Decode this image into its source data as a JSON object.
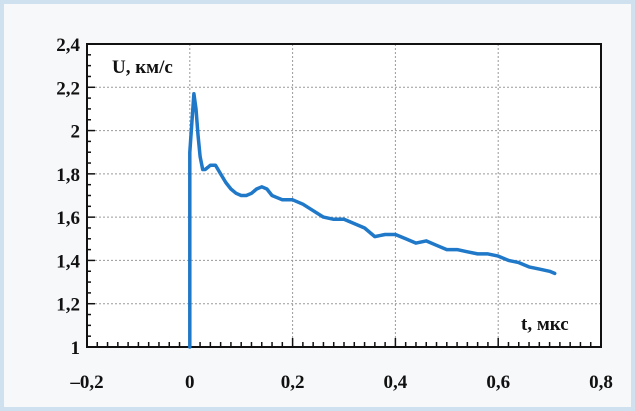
{
  "chart_data": {
    "type": "line",
    "ylabel": "U, км/с",
    "xlabel": "t, мкс",
    "xlim": [
      -0.2,
      0.8
    ],
    "ylim": [
      1,
      2.4
    ],
    "x_ticks": [
      -0.2,
      0,
      0.2,
      0.4,
      0.6,
      0.8
    ],
    "y_ticks": [
      1,
      1.2,
      1.4,
      1.6,
      1.8,
      2,
      2.2,
      2.4
    ],
    "x_tick_labels": [
      "–0,2",
      "0",
      "0,2",
      "0,4",
      "0,6",
      "0,8"
    ],
    "y_tick_labels": [
      "1",
      "1,2",
      "1,4",
      "1,6",
      "1,8",
      "2",
      "2,2",
      "2,4"
    ],
    "grid": true,
    "line_color": "#1f78c8",
    "series": [
      {
        "x": [
          0.0,
          0.0,
          0.003,
          0.008,
          0.012,
          0.016,
          0.02,
          0.025,
          0.03,
          0.035,
          0.04,
          0.05,
          0.06,
          0.07,
          0.08,
          0.09,
          0.1,
          0.11,
          0.12,
          0.13,
          0.14,
          0.15,
          0.16,
          0.17,
          0.18,
          0.19,
          0.2,
          0.22,
          0.24,
          0.26,
          0.28,
          0.3,
          0.32,
          0.34,
          0.36,
          0.38,
          0.4,
          0.42,
          0.44,
          0.46,
          0.48,
          0.5,
          0.52,
          0.54,
          0.56,
          0.58,
          0.6,
          0.62,
          0.64,
          0.66,
          0.68,
          0.7,
          0.71
        ],
        "y": [
          1.0,
          1.9,
          2.0,
          2.17,
          2.1,
          1.98,
          1.88,
          1.82,
          1.82,
          1.83,
          1.84,
          1.84,
          1.8,
          1.76,
          1.73,
          1.71,
          1.7,
          1.7,
          1.71,
          1.73,
          1.74,
          1.73,
          1.7,
          1.69,
          1.68,
          1.68,
          1.68,
          1.66,
          1.63,
          1.6,
          1.59,
          1.59,
          1.57,
          1.55,
          1.51,
          1.52,
          1.52,
          1.5,
          1.48,
          1.49,
          1.47,
          1.45,
          1.45,
          1.44,
          1.43,
          1.43,
          1.42,
          1.4,
          1.39,
          1.37,
          1.36,
          1.35,
          1.34
        ]
      }
    ]
  }
}
